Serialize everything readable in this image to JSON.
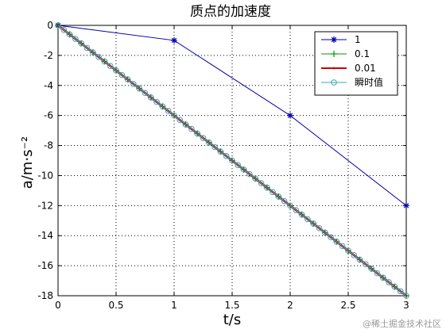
{
  "chart_data": {
    "type": "line",
    "title": "质点的加速度",
    "xlabel": "t/s",
    "ylabel": "a/m·s⁻²",
    "xlim": [
      0,
      3
    ],
    "ylim": [
      -18,
      0
    ],
    "xticks": [
      0,
      0.5,
      1,
      1.5,
      2,
      2.5,
      3
    ],
    "yticks": [
      0,
      -2,
      -4,
      -6,
      -8,
      -10,
      -12,
      -14,
      -16,
      -18
    ],
    "grid": true,
    "legend_position": "top-right",
    "series": [
      {
        "name": "1",
        "color": "#0000aa",
        "marker": "star",
        "step": 1
      },
      {
        "name": "0.1",
        "color": "#009900",
        "marker": "plus",
        "step": 0.1
      },
      {
        "name": "0.01",
        "color": "#cc0000",
        "marker": "dot",
        "step": 0.01
      },
      {
        "name": "瞬时值",
        "color": "#33a6b8",
        "marker": "circle",
        "step": 0.05
      }
    ]
  },
  "watermark": "@稀土掘金技术社区"
}
